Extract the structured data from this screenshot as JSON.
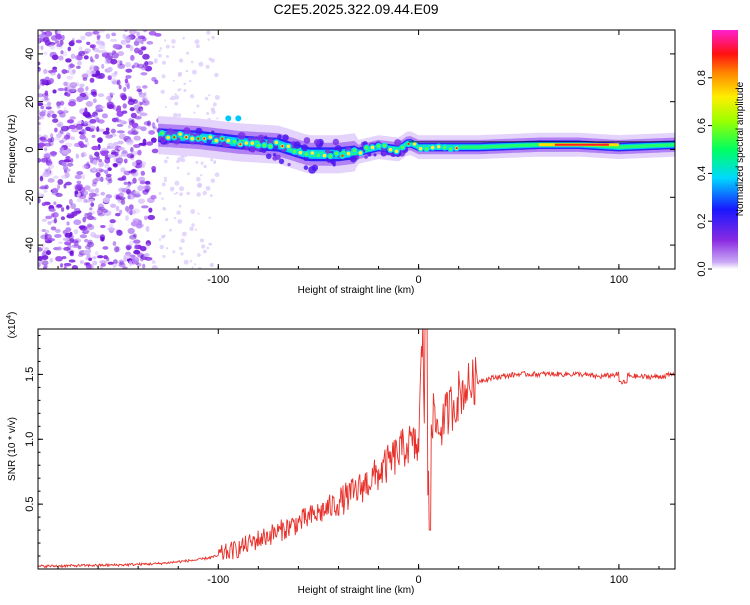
{
  "title": "C2E5.2025.322.09.44.E09",
  "chart_data": [
    {
      "type": "heatmap",
      "name": "spectrogram",
      "xlabel": "Height of straight line (km)",
      "ylabel": "Frequency (Hz)",
      "xlim": [
        -190,
        128
      ],
      "ylim": [
        -50,
        50
      ],
      "xticks": [
        -100,
        0,
        100
      ],
      "xtick_labels": [
        "-100",
        "0",
        "100"
      ],
      "yticks": [
        -40,
        -20,
        0,
        20,
        40
      ],
      "ytick_labels": [
        "-40",
        "-20",
        "0",
        "20",
        "40"
      ],
      "description_of_content": "noise scatter below -130 km, tonal line near 0 Hz above",
      "colorbar": {
        "label": "Normalized spectral amplitude",
        "range": [
          0.0,
          1.0
        ],
        "ticks": [
          0.0,
          0.2,
          0.4,
          0.6,
          0.8
        ],
        "tick_labels": [
          "0.0",
          "0.2",
          "0.4",
          "0.6",
          "0.8"
        ]
      },
      "ridge": {
        "x": [
          -130,
          -110,
          -90,
          -70,
          -55,
          -40,
          -30,
          -20,
          -10,
          -5,
          0,
          10,
          30,
          60,
          80,
          100,
          128
        ],
        "y": [
          6,
          5,
          3,
          2,
          -2,
          -2,
          -1,
          1,
          0,
          3,
          1,
          1,
          1,
          2,
          2,
          1,
          2
        ]
      }
    },
    {
      "type": "line",
      "name": "snr",
      "xlabel": "Height of straight line (km)",
      "ylabel": "SNR (10 * v/v)",
      "scale_label": "(x10",
      "scale_exponent": "4",
      "xlim": [
        -190,
        128
      ],
      "ylim": [
        0,
        1.85
      ],
      "xticks": [
        -100,
        0,
        100
      ],
      "xtick_labels": [
        "-100",
        "0",
        "100"
      ],
      "yticks": [
        0.5,
        1.0,
        1.5
      ],
      "ytick_labels": [
        "0.5",
        "1.0",
        "1.5"
      ],
      "series": [
        {
          "name": "SNR",
          "color": "#e8302a",
          "x": [
            -190,
            -150,
            -130,
            -110,
            -100,
            -90,
            -80,
            -70,
            -60,
            -50,
            -40,
            -30,
            -20,
            -15,
            -10,
            -5,
            0,
            2,
            4,
            6,
            10,
            15,
            20,
            25,
            30,
            40,
            50,
            60,
            70,
            80,
            90,
            100,
            110,
            120,
            128
          ],
          "y": [
            0.02,
            0.03,
            0.04,
            0.07,
            0.1,
            0.15,
            0.22,
            0.28,
            0.35,
            0.42,
            0.5,
            0.6,
            0.72,
            0.8,
            0.88,
            0.95,
            0.92,
            1.85,
            0.35,
            1.2,
            1.05,
            1.2,
            1.32,
            1.4,
            1.45,
            1.48,
            1.5,
            1.5,
            1.5,
            1.5,
            1.48,
            1.5,
            1.48,
            1.48,
            1.5
          ]
        }
      ]
    }
  ]
}
